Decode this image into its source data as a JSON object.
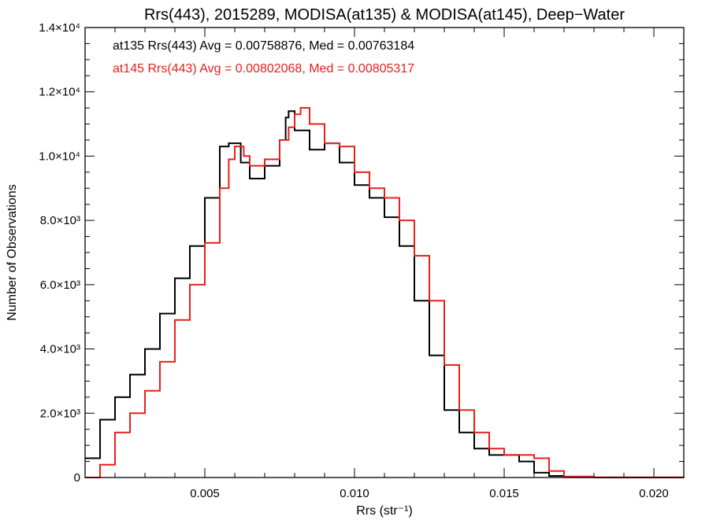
{
  "chart_data": {
    "type": "line",
    "title": "Rrs(443), 2015289, MODISA(at135) & MODISA(at145), Deep−Water",
    "xlabel": "Rrs (str⁻¹)",
    "ylabel": "Number of Observations",
    "xlim": [
      0.001,
      0.021
    ],
    "ylim": [
      0,
      14000
    ],
    "x_ticks": [
      {
        "value": 0.005,
        "label": "0.005"
      },
      {
        "value": 0.01,
        "label": "0.010"
      },
      {
        "value": 0.015,
        "label": "0.015"
      },
      {
        "value": 0.02,
        "label": "0.020"
      }
    ],
    "y_ticks": [
      {
        "value": 0,
        "label": "0"
      },
      {
        "value": 2000,
        "label": "2.0×10³"
      },
      {
        "value": 4000,
        "label": "4.0×10³"
      },
      {
        "value": 6000,
        "label": "6.0×10³"
      },
      {
        "value": 8000,
        "label": "8.0×10³"
      },
      {
        "value": 10000,
        "label": "1.0×10⁴"
      },
      {
        "value": 12000,
        "label": "1.2×10⁴"
      },
      {
        "value": 14000,
        "label": "1.4×10⁴"
      }
    ],
    "grid": false,
    "annotations": [
      {
        "text": "at135 Rrs(443) Avg = 0.00758876, Med = 0.00763184",
        "color": "#000000"
      },
      {
        "text": "at145 Rrs(443) Avg = 0.00802068, Med = 0.00805317",
        "color": "#e8201c"
      }
    ],
    "series": [
      {
        "color": "#000000",
        "x": [
          0.001,
          0.0015,
          0.002,
          0.0025,
          0.003,
          0.0035,
          0.004,
          0.0045,
          0.005,
          0.0055,
          0.0058,
          0.0062,
          0.0065,
          0.007,
          0.0075,
          0.0077,
          0.0078,
          0.008,
          0.0085,
          0.009,
          0.0095,
          0.01,
          0.0105,
          0.011,
          0.0115,
          0.012,
          0.0125,
          0.013,
          0.0135,
          0.014,
          0.0145,
          0.015,
          0.0155,
          0.016,
          0.0165,
          0.017,
          0.018,
          0.021
        ],
        "y": [
          600,
          1800,
          2500,
          3200,
          4000,
          5100,
          6200,
          7200,
          8700,
          10300,
          10400,
          9800,
          9300,
          9700,
          10500,
          11200,
          11400,
          10800,
          10200,
          10400,
          9800,
          9100,
          8700,
          8100,
          7200,
          5500,
          3800,
          2100,
          1400,
          900,
          700,
          700,
          500,
          150,
          50,
          10,
          0,
          0
        ]
      },
      {
        "color": "#e8201c",
        "x": [
          0.001,
          0.0015,
          0.002,
          0.0025,
          0.003,
          0.0035,
          0.004,
          0.0045,
          0.005,
          0.0055,
          0.0058,
          0.006,
          0.0063,
          0.0065,
          0.007,
          0.0075,
          0.0078,
          0.008,
          0.0082,
          0.0085,
          0.009,
          0.0095,
          0.01,
          0.0105,
          0.011,
          0.0115,
          0.012,
          0.0125,
          0.013,
          0.0135,
          0.014,
          0.0145,
          0.015,
          0.0155,
          0.016,
          0.0165,
          0.017,
          0.018,
          0.021
        ],
        "y": [
          0,
          400,
          1400,
          2000,
          2700,
          3600,
          4900,
          6000,
          7300,
          9000,
          9900,
          10300,
          10000,
          9700,
          9900,
          10500,
          10900,
          11300,
          11500,
          11000,
          10400,
          10300,
          9500,
          9000,
          8700,
          8000,
          6900,
          5500,
          3500,
          2100,
          1400,
          900,
          700,
          700,
          600,
          200,
          30,
          5,
          0
        ]
      }
    ]
  }
}
